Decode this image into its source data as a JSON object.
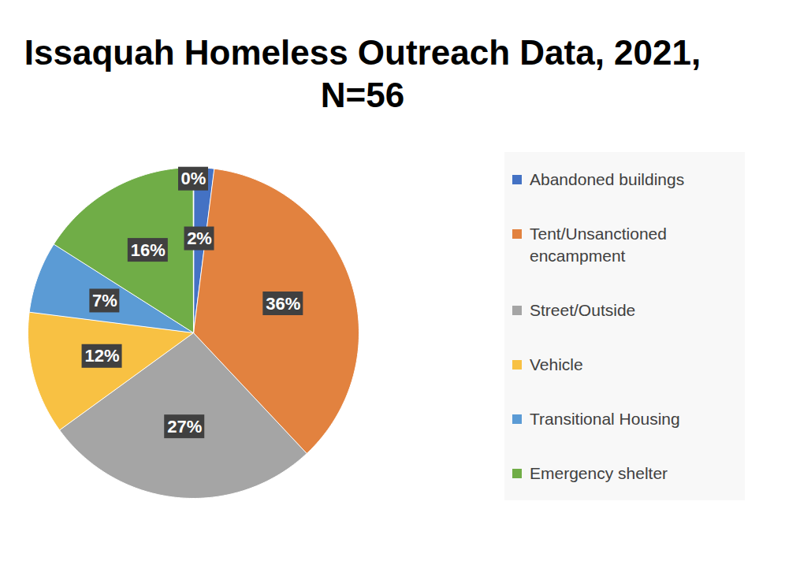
{
  "chart_data": {
    "type": "pie",
    "title": "Issaquah Homeless Outreach Data, 2021, N=56",
    "categories": [
      "Abandoned buildings",
      "Tent/Unsanctioned encampment",
      "Street/Outside",
      "Vehicle",
      "Transitional Housing",
      "Emergency shelter",
      null
    ],
    "values": [
      2,
      36,
      27,
      12,
      7,
      16,
      0
    ],
    "value_labels": [
      "2%",
      "36%",
      "27%",
      "12%",
      "7%",
      "16%",
      "0%"
    ],
    "colors": [
      "#4472c4",
      "#e2823f",
      "#a5a5a5",
      "#f8c143",
      "#5b9bd5",
      "#70ad47",
      "#264478"
    ],
    "data_labels": true,
    "legend": "right"
  }
}
